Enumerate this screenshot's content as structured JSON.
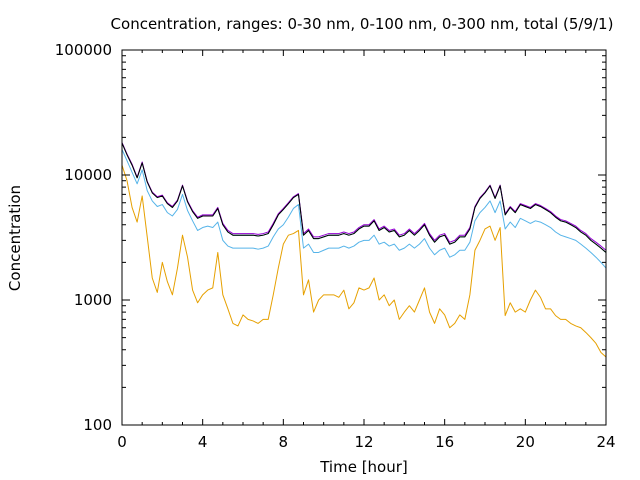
{
  "chart_data": {
    "type": "line",
    "title": "Concentration, ranges: 0-30 nm, 0-100 nm, 0-300 nm, total (5/9/1)",
    "xlabel": "Time [hour]",
    "ylabel": "Concentration",
    "xlim": [
      0,
      24
    ],
    "ylim": [
      100,
      100000
    ],
    "yscale": "log",
    "grid": false,
    "legend": "none",
    "xticks": [
      0,
      4,
      8,
      12,
      16,
      20,
      24
    ],
    "xtick_labels": [
      "0",
      "4",
      "8",
      "12",
      "16",
      "20",
      "24"
    ],
    "yticks": [
      100,
      1000,
      10000,
      100000
    ],
    "ytick_labels": [
      "100",
      "1000",
      "10000",
      "100000"
    ],
    "x": [
      0,
      0.25,
      0.5,
      0.75,
      1,
      1.25,
      1.5,
      1.75,
      2,
      2.25,
      2.5,
      2.75,
      3,
      3.25,
      3.5,
      3.75,
      4,
      4.25,
      4.5,
      4.75,
      5,
      5.25,
      5.5,
      5.75,
      6,
      6.25,
      6.5,
      6.75,
      7,
      7.25,
      7.5,
      7.75,
      8,
      8.25,
      8.5,
      8.75,
      9,
      9.25,
      9.5,
      9.75,
      10,
      10.25,
      10.5,
      10.75,
      11,
      11.25,
      11.5,
      11.75,
      12,
      12.25,
      12.5,
      12.75,
      13,
      13.25,
      13.5,
      13.75,
      14,
      14.25,
      14.5,
      14.75,
      15,
      15.25,
      15.5,
      15.75,
      16,
      16.25,
      16.5,
      16.75,
      17,
      17.25,
      17.5,
      17.75,
      18,
      18.25,
      18.5,
      18.75,
      19,
      19.25,
      19.5,
      19.75,
      20,
      20.25,
      20.5,
      20.75,
      21,
      21.25,
      21.5,
      21.75,
      22,
      22.25,
      22.5,
      22.75,
      23,
      23.25,
      23.5,
      23.75,
      24
    ],
    "series": [
      {
        "color": "#e6a000",
        "values": [
          12000,
          9000,
          5500,
          4200,
          6800,
          3200,
          1500,
          1150,
          2000,
          1400,
          1100,
          1800,
          3300,
          2200,
          1200,
          950,
          1100,
          1200,
          1250,
          2400,
          1100,
          850,
          650,
          620,
          760,
          700,
          680,
          650,
          700,
          700,
          1100,
          1800,
          2800,
          3300,
          3400,
          3600,
          1100,
          1450,
          800,
          1000,
          1100,
          1100,
          1100,
          1050,
          1200,
          850,
          950,
          1250,
          1200,
          1250,
          1500,
          1000,
          1100,
          900,
          1000,
          700,
          800,
          900,
          800,
          1000,
          1250,
          800,
          650,
          850,
          760,
          600,
          650,
          760,
          700,
          1100,
          2500,
          3000,
          3700,
          3900,
          3000,
          3800,
          750,
          950,
          800,
          850,
          800,
          1000,
          1200,
          1050,
          850,
          850,
          750,
          700,
          700,
          650,
          620,
          600,
          550,
          500,
          450,
          380,
          350
        ]
      },
      {
        "color": "#56b4e9",
        "values": [
          16000,
          13000,
          10500,
          8500,
          11000,
          7500,
          6200,
          5600,
          5800,
          5000,
          4700,
          5300,
          7000,
          5200,
          4300,
          3600,
          3800,
          3900,
          3800,
          4200,
          3000,
          2700,
          2600,
          2600,
          2600,
          2600,
          2600,
          2550,
          2600,
          2700,
          3200,
          3700,
          4000,
          4600,
          5400,
          5800,
          2600,
          2800,
          2400,
          2400,
          2500,
          2600,
          2600,
          2600,
          2700,
          2600,
          2700,
          2900,
          3000,
          3000,
          3300,
          2800,
          2900,
          2700,
          2800,
          2500,
          2600,
          2800,
          2600,
          2800,
          3100,
          2600,
          2300,
          2500,
          2600,
          2200,
          2300,
          2500,
          2500,
          2900,
          4300,
          5000,
          5500,
          6200,
          5000,
          6200,
          3700,
          4200,
          3800,
          4500,
          4300,
          4100,
          4300,
          4200,
          4000,
          3800,
          3500,
          3300,
          3200,
          3100,
          3000,
          2800,
          2600,
          2400,
          2200,
          2000,
          1800
        ]
      },
      {
        "color": "#009e73",
        "values": [
          18000,
          14500,
          12000,
          9500,
          12500,
          8800,
          7200,
          6600,
          6800,
          5900,
          5500,
          6200,
          8200,
          6100,
          5100,
          4500,
          4700,
          4700,
          4700,
          5400,
          4000,
          3500,
          3300,
          3300,
          3300,
          3300,
          3300,
          3250,
          3300,
          3400,
          4000,
          4800,
          5300,
          5900,
          6600,
          7000,
          3300,
          3600,
          3100,
          3100,
          3200,
          3300,
          3300,
          3300,
          3400,
          3300,
          3400,
          3700,
          3900,
          3900,
          4300,
          3600,
          3800,
          3500,
          3600,
          3200,
          3300,
          3600,
          3300,
          3600,
          4000,
          3300,
          2900,
          3200,
          3300,
          2800,
          2900,
          3200,
          3200,
          3700,
          5500,
          6500,
          7200,
          8200,
          6500,
          8200,
          4800,
          5500,
          5000,
          5800,
          5600,
          5400,
          5800,
          5600,
          5300,
          5000,
          4600,
          4300,
          4200,
          4000,
          3800,
          3500,
          3300,
          3000,
          2800,
          2600,
          2400
        ]
      },
      {
        "color": "#9400d3",
        "values": [
          18200,
          14700,
          12200,
          9600,
          12700,
          8900,
          7300,
          6700,
          6900,
          6000,
          5600,
          6300,
          8300,
          6200,
          5200,
          4600,
          4800,
          4800,
          4800,
          5500,
          4100,
          3600,
          3400,
          3400,
          3400,
          3400,
          3400,
          3350,
          3400,
          3500,
          4100,
          4900,
          5400,
          6000,
          6700,
          7100,
          3400,
          3700,
          3200,
          3200,
          3300,
          3400,
          3400,
          3400,
          3500,
          3400,
          3500,
          3800,
          4000,
          4000,
          4400,
          3700,
          3900,
          3600,
          3700,
          3300,
          3400,
          3700,
          3400,
          3700,
          4100,
          3400,
          3000,
          3300,
          3400,
          2900,
          3000,
          3300,
          3300,
          3800,
          5600,
          6600,
          7300,
          8300,
          6600,
          8300,
          4900,
          5600,
          5100,
          5900,
          5700,
          5500,
          5900,
          5700,
          5400,
          5100,
          4700,
          4400,
          4300,
          4100,
          3900,
          3600,
          3400,
          3100,
          2900,
          2700,
          2500
        ]
      },
      {
        "color": "#000000",
        "values": [
          18000,
          14500,
          12000,
          9500,
          12500,
          8800,
          7200,
          6600,
          6800,
          5900,
          5500,
          6200,
          8200,
          6100,
          5100,
          4500,
          4700,
          4700,
          4700,
          5400,
          4000,
          3500,
          3300,
          3300,
          3300,
          3300,
          3300,
          3250,
          3300,
          3400,
          4000,
          4800,
          5300,
          5900,
          6600,
          7000,
          3300,
          3600,
          3100,
          3100,
          3200,
          3300,
          3300,
          3300,
          3400,
          3300,
          3400,
          3700,
          3900,
          3900,
          4300,
          3600,
          3800,
          3500,
          3600,
          3200,
          3300,
          3600,
          3300,
          3600,
          4000,
          3300,
          2900,
          3200,
          3300,
          2800,
          2900,
          3200,
          3200,
          3700,
          5500,
          6500,
          7200,
          8200,
          6500,
          8200,
          4800,
          5500,
          5000,
          5800,
          5600,
          5400,
          5800,
          5600,
          5300,
          5000,
          4600,
          4300,
          4200,
          4000,
          3800,
          3500,
          3300,
          3000,
          2800,
          2600,
          2400
        ]
      }
    ]
  }
}
